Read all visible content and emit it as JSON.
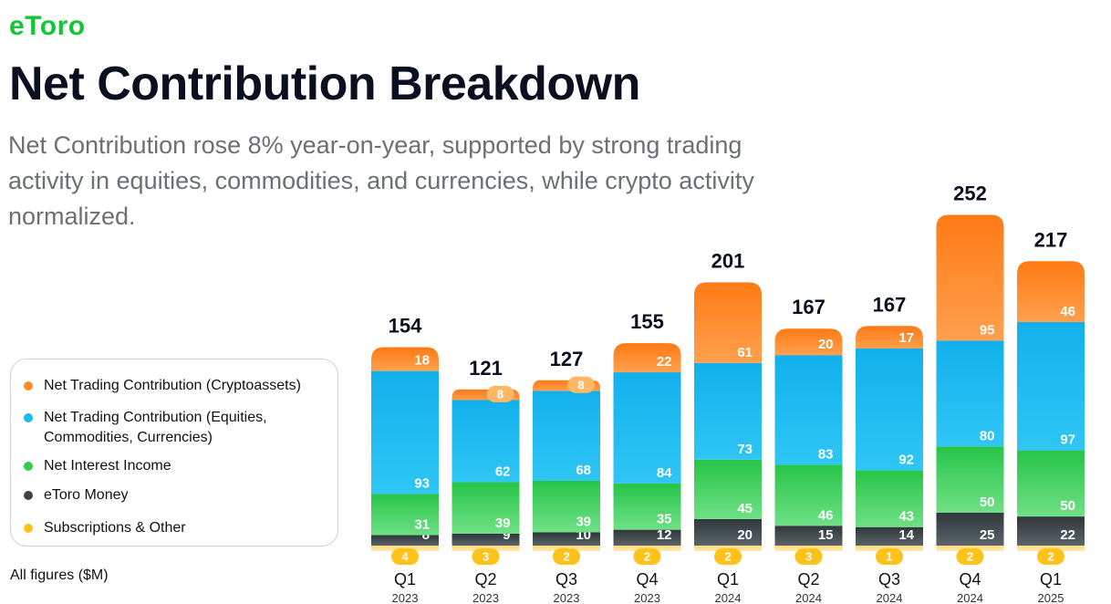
{
  "brand": {
    "logo_text": "eToro",
    "logo_color": "#13c636"
  },
  "header": {
    "title": "Net Contribution Breakdown",
    "subtitle": "Net Contribution rose 8% year-on-year, supported by strong trading activity in equities, commodities, and currencies, while crypto activity normalized."
  },
  "footnote": "All figures ($M)",
  "legend": [
    {
      "label": "Net Trading Contribution (Cryptoassets)",
      "color": "#ff8a2a"
    },
    {
      "label": "Net Trading Contribution (Equities, Commodities, Currencies)",
      "color": "#1eb7ee"
    },
    {
      "label": "Net Interest Income",
      "color": "#2fcc50"
    },
    {
      "label": "eToro Money",
      "color": "#3a4347"
    },
    {
      "label": "Subscriptions & Other",
      "color": "#ffc21a"
    }
  ],
  "chart_data": {
    "type": "bar",
    "stacked": true,
    "categories": [
      "Q1",
      "Q2",
      "Q3",
      "Q4",
      "Q1",
      "Q2",
      "Q3",
      "Q4",
      "Q1"
    ],
    "years": [
      "2023",
      "2023",
      "2023",
      "2023",
      "2024",
      "2024",
      "2024",
      "2024",
      "2025"
    ],
    "totals": [
      154,
      121,
      127,
      155,
      201,
      167,
      167,
      252,
      217
    ],
    "series": [
      {
        "name": "Subscriptions & Other",
        "color": "#ffc21a",
        "values": [
          4,
          3,
          2,
          2,
          2,
          3,
          1,
          2,
          2
        ]
      },
      {
        "name": "eToro Money",
        "color": "#3a4347",
        "values": [
          8,
          9,
          10,
          12,
          20,
          15,
          14,
          25,
          22
        ]
      },
      {
        "name": "Net Interest Income",
        "color": "#2fcc50",
        "values": [
          31,
          39,
          39,
          35,
          45,
          46,
          43,
          50,
          50
        ]
      },
      {
        "name": "Net Trading Contribution (Equities, Commodities, Currencies)",
        "color": "#1eb7ee",
        "values": [
          93,
          62,
          68,
          84,
          73,
          83,
          92,
          80,
          97
        ]
      },
      {
        "name": "Net Trading Contribution (Cryptoassets)",
        "color": "#ff8a2a",
        "values": [
          18,
          8,
          8,
          22,
          61,
          20,
          17,
          95,
          46
        ]
      }
    ],
    "title": "Net Contribution Breakdown",
    "xlabel": "",
    "ylabel": "",
    "ylim": [
      0,
      252
    ],
    "grid": false,
    "legend_position": "left"
  }
}
